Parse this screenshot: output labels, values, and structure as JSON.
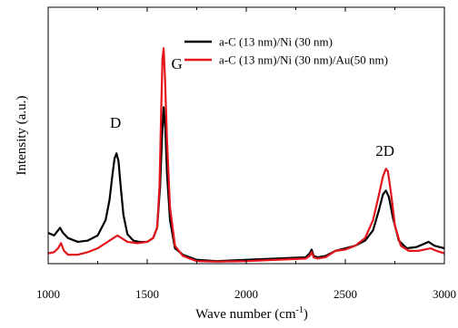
{
  "chart_data": {
    "type": "line",
    "title": "",
    "xlabel": "Wave number",
    "xlabel_unit_base": "(cm",
    "xlabel_unit_exp": "-1",
    "xlabel_unit_end": ")",
    "ylabel": "Intensity (a.u.)",
    "xlim": [
      1000,
      3000
    ],
    "ylim": [
      0,
      1.0
    ],
    "x_ticks": [
      1000,
      1500,
      2000,
      2500,
      3000
    ],
    "x_tick_labels": [
      "1000",
      "1500",
      "2000",
      "2500",
      "3000"
    ],
    "y_ticks_visible": false,
    "grid": false,
    "legend_position": "top-right",
    "annotations": [
      {
        "text": "D",
        "x": 1340,
        "y": 0.53
      },
      {
        "text": "G",
        "x": 1650,
        "y": 0.76
      },
      {
        "text": "2D",
        "x": 2700,
        "y": 0.42
      }
    ],
    "series": [
      {
        "name": "a-C (13 nm)/Ni (30 nm)",
        "color": "#000000",
        "x": [
          1000,
          1030,
          1060,
          1075,
          1100,
          1150,
          1200,
          1250,
          1290,
          1310,
          1325,
          1335,
          1345,
          1355,
          1365,
          1380,
          1400,
          1430,
          1460,
          1500,
          1530,
          1550,
          1565,
          1575,
          1583,
          1592,
          1600,
          1615,
          1640,
          1680,
          1750,
          1850,
          2000,
          2150,
          2300,
          2320,
          2330,
          2340,
          2360,
          2400,
          2450,
          2500,
          2550,
          2600,
          2640,
          2670,
          2690,
          2705,
          2720,
          2740,
          2770,
          2810,
          2860,
          2920,
          2950,
          3000
        ],
        "values": [
          0.12,
          0.11,
          0.14,
          0.12,
          0.1,
          0.085,
          0.09,
          0.11,
          0.17,
          0.25,
          0.35,
          0.41,
          0.43,
          0.4,
          0.31,
          0.19,
          0.115,
          0.09,
          0.085,
          0.085,
          0.1,
          0.14,
          0.3,
          0.5,
          0.61,
          0.52,
          0.35,
          0.17,
          0.06,
          0.035,
          0.015,
          0.01,
          0.015,
          0.02,
          0.025,
          0.04,
          0.055,
          0.03,
          0.025,
          0.03,
          0.05,
          0.06,
          0.07,
          0.09,
          0.13,
          0.21,
          0.27,
          0.285,
          0.26,
          0.18,
          0.09,
          0.06,
          0.065,
          0.085,
          0.07,
          0.06
        ]
      },
      {
        "name": "a-C (13 nm)/Ni (30 nm)/Au(50 nm)",
        "color": "#e3141c",
        "x": [
          1000,
          1030,
          1050,
          1065,
          1080,
          1100,
          1150,
          1200,
          1250,
          1300,
          1330,
          1350,
          1370,
          1400,
          1450,
          1500,
          1530,
          1550,
          1562,
          1570,
          1577,
          1583,
          1590,
          1600,
          1615,
          1640,
          1680,
          1750,
          1850,
          2000,
          2150,
          2300,
          2320,
          2330,
          2340,
          2360,
          2400,
          2450,
          2500,
          2550,
          2600,
          2640,
          2670,
          2690,
          2705,
          2715,
          2730,
          2750,
          2780,
          2820,
          2870,
          2930,
          2960,
          3000
        ],
        "values": [
          0.04,
          0.045,
          0.06,
          0.08,
          0.05,
          0.035,
          0.035,
          0.045,
          0.06,
          0.085,
          0.1,
          0.11,
          0.1,
          0.085,
          0.08,
          0.085,
          0.1,
          0.14,
          0.3,
          0.58,
          0.8,
          0.84,
          0.72,
          0.48,
          0.22,
          0.07,
          0.03,
          0.01,
          0.008,
          0.01,
          0.015,
          0.02,
          0.03,
          0.045,
          0.025,
          0.02,
          0.025,
          0.05,
          0.055,
          0.07,
          0.1,
          0.17,
          0.27,
          0.34,
          0.37,
          0.36,
          0.28,
          0.15,
          0.07,
          0.05,
          0.05,
          0.06,
          0.05,
          0.04
        ]
      }
    ]
  }
}
